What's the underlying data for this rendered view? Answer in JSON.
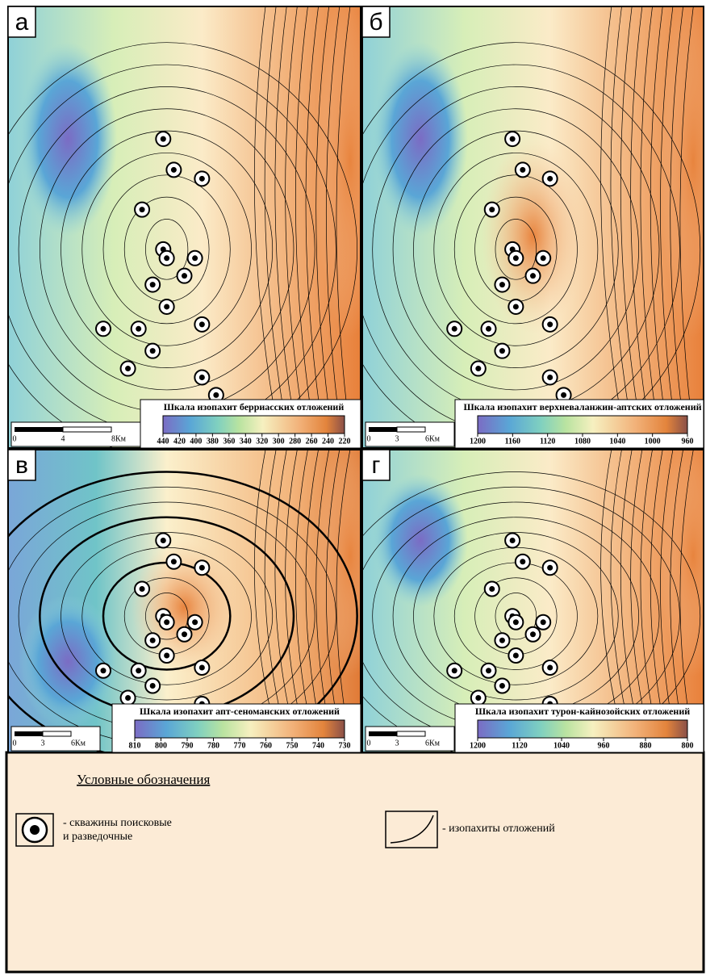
{
  "panels": [
    {
      "label": "а",
      "scale_title": "Шкала изопахит берриасских отложений",
      "scale_ticks": [
        440,
        420,
        400,
        380,
        360,
        340,
        320,
        300,
        280,
        260,
        240,
        220
      ],
      "scale_bar": [
        "0",
        "4",
        "8Км"
      ]
    },
    {
      "label": "б",
      "scale_title": "Шкала изопахит верхневаланжин-аптских отложений",
      "scale_ticks": [
        1200,
        1160,
        1120,
        1080,
        1040,
        1000,
        960
      ],
      "scale_bar": [
        "0",
        "3",
        "6Км"
      ]
    },
    {
      "label": "в",
      "scale_title": "Шкала изопахит апт-сеноманских отложений",
      "scale_ticks": [
        810,
        800,
        790,
        780,
        770,
        760,
        750,
        740,
        730
      ],
      "scale_bar": [
        "0",
        "3",
        "6Км"
      ]
    },
    {
      "label": "г",
      "scale_title": "Шкала изопахит турон-кайнозойских отложений",
      "scale_ticks": [
        1200,
        1120,
        1040,
        960,
        880,
        800
      ],
      "scale_bar": [
        "0",
        "3",
        "6Км"
      ]
    }
  ],
  "legend": {
    "title": "Условные обозначения",
    "wells": [
      "- скважины поисковые",
      "и разведочные"
    ],
    "isopachs": "- изопахиты отложений"
  }
}
